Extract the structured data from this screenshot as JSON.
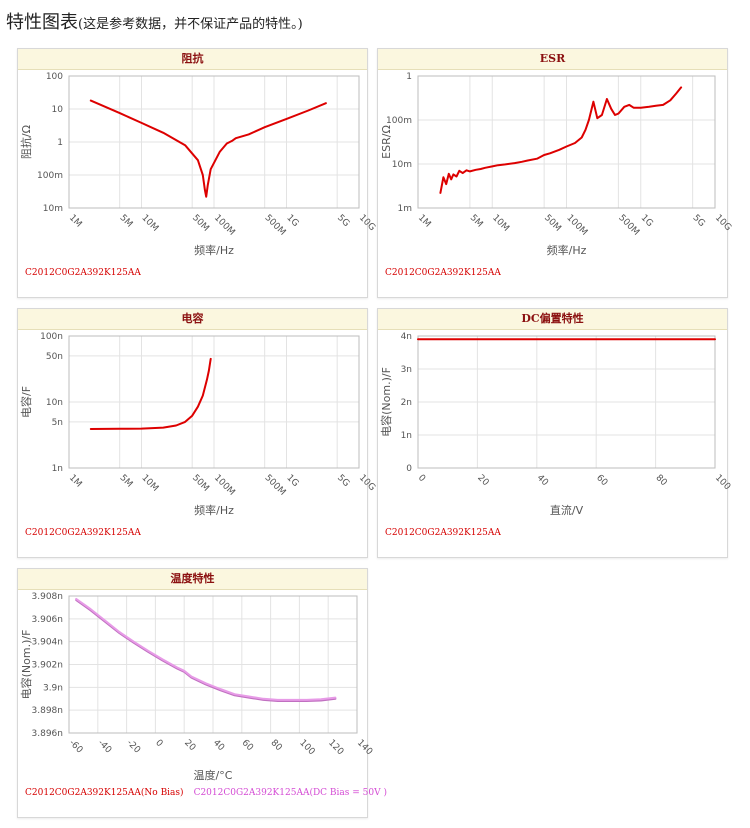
{
  "page": {
    "title": "特性图表",
    "note": "(这是参考数据，并不保证产品的特性。)"
  },
  "chart_data": [
    {
      "id": "impedance",
      "type": "line",
      "title": "阻抗",
      "xlabel": "频率/Hz",
      "ylabel": "阻抗/Ω",
      "xscale": "log",
      "yscale": "log",
      "xlim": [
        1000000,
        10000000000
      ],
      "ylim": [
        0.01,
        100
      ],
      "x_ticks": [
        {
          "v": 1000000,
          "t": "1M"
        },
        {
          "v": 5000000,
          "t": "5M"
        },
        {
          "v": 10000000,
          "t": "10M"
        },
        {
          "v": 50000000,
          "t": "50M"
        },
        {
          "v": 100000000,
          "t": "100M"
        },
        {
          "v": 500000000,
          "t": "500M"
        },
        {
          "v": 1000000000,
          "t": "1G"
        },
        {
          "v": 5000000000,
          "t": "5G"
        },
        {
          "v": 10000000000,
          "t": "10G"
        }
      ],
      "y_ticks": [
        {
          "v": 100,
          "t": "100"
        },
        {
          "v": 10,
          "t": "10"
        },
        {
          "v": 1,
          "t": "1"
        },
        {
          "v": 0.1,
          "t": "100m"
        },
        {
          "v": 0.01,
          "t": "10m"
        }
      ],
      "grid": true,
      "series": [
        {
          "color": "#dd0000",
          "x": [
            2000000,
            5000000,
            10000000,
            20000000,
            40000000,
            60000000,
            70000000,
            75000000,
            78000000,
            82000000,
            90000000,
            120000000,
            150000000,
            180000000,
            200000000,
            300000000,
            500000000,
            1000000000,
            2000000000,
            3500000000
          ],
          "y": [
            18,
            7.5,
            3.8,
            1.9,
            0.8,
            0.28,
            0.1,
            0.035,
            0.022,
            0.05,
            0.15,
            0.5,
            0.9,
            1.1,
            1.3,
            1.7,
            2.8,
            5,
            9,
            15
          ]
        }
      ],
      "caption": [
        "C2012C0G2A392K125AA"
      ]
    },
    {
      "id": "esr",
      "type": "line",
      "title": "ESR",
      "xlabel": "频率/Hz",
      "ylabel": "ESR/Ω",
      "xscale": "log",
      "yscale": "log",
      "xlim": [
        1000000,
        10000000000
      ],
      "ylim": [
        0.001,
        1
      ],
      "x_ticks": [
        {
          "v": 1000000,
          "t": "1M"
        },
        {
          "v": 5000000,
          "t": "5M"
        },
        {
          "v": 10000000,
          "t": "10M"
        },
        {
          "v": 50000000,
          "t": "50M"
        },
        {
          "v": 100000000,
          "t": "100M"
        },
        {
          "v": 500000000,
          "t": "500M"
        },
        {
          "v": 1000000000,
          "t": "1G"
        },
        {
          "v": 5000000000,
          "t": "5G"
        },
        {
          "v": 10000000000,
          "t": "10G"
        }
      ],
      "y_ticks": [
        {
          "v": 1,
          "t": "1"
        },
        {
          "v": 0.1,
          "t": "100m"
        },
        {
          "v": 0.01,
          "t": "10m"
        },
        {
          "v": 0.001,
          "t": "1m"
        }
      ],
      "grid": true,
      "series": [
        {
          "color": "#dd0000",
          "x": [
            2000000,
            2200000,
            2400000,
            2600000,
            2800000,
            3000000,
            3300000,
            3600000,
            4000000,
            4500000,
            5000000,
            6000000,
            7000000,
            8000000,
            10000000,
            12000000,
            15000000,
            20000000,
            25000000,
            30000000,
            40000000,
            50000000,
            60000000,
            80000000,
            100000000,
            130000000,
            160000000,
            180000000,
            200000000,
            230000000,
            260000000,
            300000000,
            350000000,
            400000000,
            450000000,
            500000000,
            600000000,
            700000000,
            800000000,
            1000000000,
            1300000000,
            1600000000,
            2000000000,
            2500000000,
            3000000000,
            3500000000
          ],
          "y": [
            0.0022,
            0.005,
            0.0035,
            0.006,
            0.0045,
            0.0058,
            0.0052,
            0.007,
            0.0062,
            0.0072,
            0.0068,
            0.0074,
            0.0077,
            0.0082,
            0.0088,
            0.0094,
            0.0098,
            0.0105,
            0.0112,
            0.012,
            0.0132,
            0.016,
            0.0175,
            0.021,
            0.025,
            0.03,
            0.04,
            0.06,
            0.1,
            0.26,
            0.11,
            0.13,
            0.3,
            0.18,
            0.13,
            0.14,
            0.2,
            0.22,
            0.19,
            0.19,
            0.2,
            0.21,
            0.22,
            0.28,
            0.4,
            0.55
          ]
        }
      ],
      "caption": [
        "C2012C0G2A392K125AA"
      ]
    },
    {
      "id": "capacitance",
      "type": "line",
      "title": "电容",
      "xlabel": "频率/Hz",
      "ylabel": "电容/F",
      "xscale": "log",
      "yscale": "log",
      "xlim": [
        1000000,
        10000000000
      ],
      "ylim": [
        1e-09,
        1e-07
      ],
      "x_ticks": [
        {
          "v": 1000000,
          "t": "1M"
        },
        {
          "v": 5000000,
          "t": "5M"
        },
        {
          "v": 10000000,
          "t": "10M"
        },
        {
          "v": 50000000,
          "t": "50M"
        },
        {
          "v": 100000000,
          "t": "100M"
        },
        {
          "v": 500000000,
          "t": "500M"
        },
        {
          "v": 1000000000,
          "t": "1G"
        },
        {
          "v": 5000000000,
          "t": "5G"
        },
        {
          "v": 10000000000,
          "t": "10G"
        }
      ],
      "y_ticks": [
        {
          "v": 1e-07,
          "t": "100n"
        },
        {
          "v": 5e-08,
          "t": "50n"
        },
        {
          "v": 1e-08,
          "t": "10n"
        },
        {
          "v": 5e-09,
          "t": "5n"
        },
        {
          "v": 1e-09,
          "t": "1n"
        }
      ],
      "grid": true,
      "series": [
        {
          "color": "#dd0000",
          "x": [
            2000000,
            5000000,
            10000000,
            20000000,
            30000000,
            40000000,
            50000000,
            60000000,
            70000000,
            80000000,
            85000000,
            90000000
          ],
          "y": [
            3.9e-09,
            3.92e-09,
            3.96e-09,
            4.1e-09,
            4.4e-09,
            5e-09,
            6.2e-09,
            8.5e-09,
            1.25e-08,
            2.2e-08,
            3e-08,
            4.5e-08
          ]
        }
      ],
      "caption": [
        "C2012C0G2A392K125AA"
      ]
    },
    {
      "id": "dc-bias",
      "type": "line",
      "title": "DC偏置特性",
      "xlabel": "直流/V",
      "ylabel": "电容(Nom.)/F",
      "xscale": "linear",
      "yscale": "linear",
      "xlim": [
        0,
        100
      ],
      "ylim": [
        0,
        4e-09
      ],
      "x_ticks": [
        {
          "v": 0,
          "t": "0"
        },
        {
          "v": 20,
          "t": "20"
        },
        {
          "v": 40,
          "t": "40"
        },
        {
          "v": 60,
          "t": "60"
        },
        {
          "v": 80,
          "t": "80"
        },
        {
          "v": 100,
          "t": "100"
        }
      ],
      "y_ticks": [
        {
          "v": 4e-09,
          "t": "4n"
        },
        {
          "v": 3e-09,
          "t": "3n"
        },
        {
          "v": 2e-09,
          "t": "2n"
        },
        {
          "v": 1e-09,
          "t": "1n"
        },
        {
          "v": 0,
          "t": "0"
        }
      ],
      "grid": true,
      "series": [
        {
          "color": "#dd0000",
          "x": [
            0,
            100
          ],
          "y": [
            3.9e-09,
            3.9e-09
          ]
        }
      ],
      "caption": [
        "C2012C0G2A392K125AA"
      ]
    },
    {
      "id": "temperature",
      "type": "line",
      "title": "温度特性",
      "xlabel": "温度/°C",
      "ylabel": "电容(Nom.)/F",
      "xscale": "linear",
      "yscale": "linear",
      "xlim": [
        -60,
        140
      ],
      "ylim": [
        3.896e-09,
        3.908e-09
      ],
      "x_ticks": [
        {
          "v": -60,
          "t": "-60"
        },
        {
          "v": -40,
          "t": "-40"
        },
        {
          "v": -20,
          "t": "-20"
        },
        {
          "v": 0,
          "t": "0"
        },
        {
          "v": 20,
          "t": "20"
        },
        {
          "v": 40,
          "t": "40"
        },
        {
          "v": 60,
          "t": "60"
        },
        {
          "v": 80,
          "t": "80"
        },
        {
          "v": 100,
          "t": "100"
        },
        {
          "v": 120,
          "t": "120"
        },
        {
          "v": 140,
          "t": "140"
        }
      ],
      "y_ticks": [
        {
          "v": 3.908e-09,
          "t": "3.908n"
        },
        {
          "v": 3.906e-09,
          "t": "3.906n"
        },
        {
          "v": 3.904e-09,
          "t": "3.904n"
        },
        {
          "v": 3.902e-09,
          "t": "3.902n"
        },
        {
          "v": 3.9e-09,
          "t": "3.9n"
        },
        {
          "v": 3.898e-09,
          "t": "3.898n"
        },
        {
          "v": 3.896e-09,
          "t": "3.896n"
        }
      ],
      "grid": true,
      "series": [
        {
          "color": "#c070c0",
          "x": [
            -55,
            -45,
            -35,
            -25,
            -15,
            -5,
            5,
            15,
            20,
            25,
            35,
            45,
            55,
            65,
            75,
            85,
            95,
            105,
            115,
            125
          ],
          "y": [
            3.90765e-09,
            3.90675e-09,
            3.90575e-09,
            3.90475e-09,
            3.9039e-09,
            3.9031e-09,
            3.90235e-09,
            3.90165e-09,
            3.90135e-09,
            3.90085e-09,
            3.90025e-09,
            3.89975e-09,
            3.8993e-09,
            3.8991e-09,
            3.8989e-09,
            3.8988e-09,
            3.8988e-09,
            3.8988e-09,
            3.89885e-09,
            3.899e-09
          ]
        },
        {
          "color": "#e79be7",
          "x": [
            -55,
            -45,
            -35,
            -25,
            -15,
            -5,
            5,
            15,
            20,
            25,
            35,
            45,
            55,
            65,
            75,
            85,
            95,
            105,
            115,
            125
          ],
          "y": [
            3.90775e-09,
            3.90685e-09,
            3.90585e-09,
            3.90485e-09,
            3.904e-09,
            3.9032e-09,
            3.90245e-09,
            3.90175e-09,
            3.90145e-09,
            3.90095e-09,
            3.90035e-09,
            3.89985e-09,
            3.8994e-09,
            3.8992e-09,
            3.899e-09,
            3.8989e-09,
            3.8989e-09,
            3.8989e-09,
            3.89895e-09,
            3.8991e-09
          ]
        }
      ],
      "caption": [
        "C2012C0G2A392K125AA(No Bias)",
        "C2012C0G2A392K125AA(DC Bias = 50V )"
      ]
    }
  ]
}
